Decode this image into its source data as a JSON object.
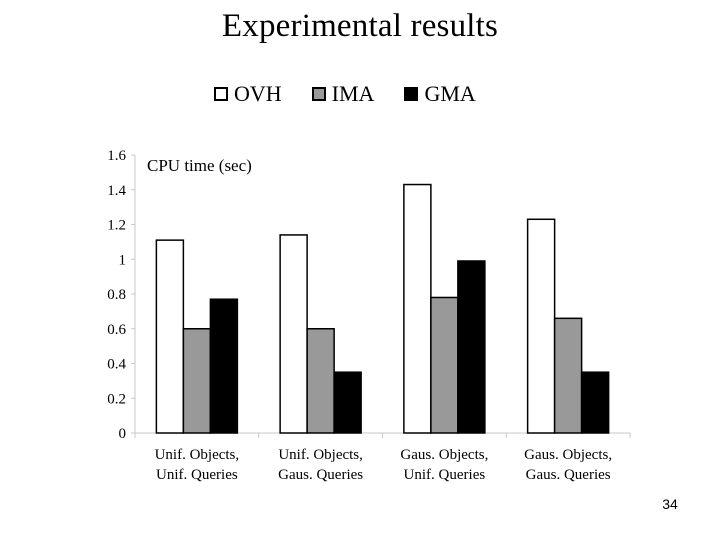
{
  "slide": {
    "title": "Experimental results",
    "page_number": "34"
  },
  "colors": {
    "OVH": "#ffffff",
    "IMA": "#999999",
    "GMA": "#000000",
    "axis": "#c8c8c8",
    "text": "#000000"
  },
  "chart_data": {
    "type": "bar",
    "title": "",
    "ylabel": "CPU time (sec)",
    "xlabel": "",
    "ylim": [
      0,
      1.6
    ],
    "yticks": [
      "0",
      "0.2",
      "0.4",
      "0.6",
      "0.8",
      "1",
      "1.2",
      "1.4",
      "1.6"
    ],
    "grid": false,
    "legend_position": "top",
    "categories": [
      [
        "Unif. Objects,",
        "Unif. Queries"
      ],
      [
        "Unif. Objects,",
        "Gaus. Queries"
      ],
      [
        "Gaus. Objects,",
        "Unif. Queries"
      ],
      [
        "Gaus. Objects,",
        "Gaus. Queries"
      ]
    ],
    "series": [
      {
        "name": "OVH",
        "values": [
          1.11,
          1.14,
          1.43,
          1.23
        ]
      },
      {
        "name": "IMA",
        "values": [
          0.6,
          0.6,
          0.78,
          0.66
        ]
      },
      {
        "name": "GMA",
        "values": [
          0.77,
          0.35,
          0.99,
          0.35
        ]
      }
    ]
  }
}
